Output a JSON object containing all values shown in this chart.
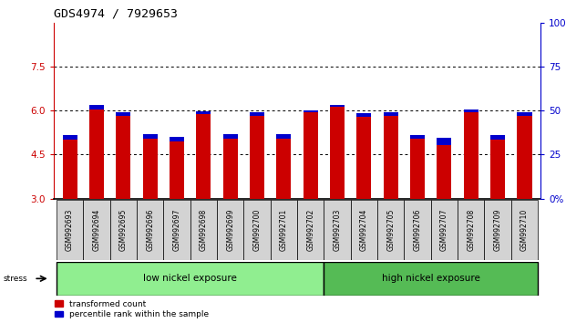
{
  "title": "GDS4974 / 7929653",
  "samples": [
    "GSM992693",
    "GSM992694",
    "GSM992695",
    "GSM992696",
    "GSM992697",
    "GSM992698",
    "GSM992699",
    "GSM992700",
    "GSM992701",
    "GSM992702",
    "GSM992703",
    "GSM992704",
    "GSM992705",
    "GSM992706",
    "GSM992707",
    "GSM992708",
    "GSM992709",
    "GSM992710"
  ],
  "red_values": [
    5.02,
    6.05,
    5.82,
    5.05,
    4.95,
    5.87,
    5.05,
    5.82,
    5.05,
    5.95,
    6.12,
    5.8,
    5.82,
    5.05,
    4.82,
    5.95,
    5.02,
    5.82
  ],
  "blue_values": [
    5.18,
    6.18,
    5.95,
    5.2,
    5.1,
    5.97,
    5.2,
    5.95,
    5.2,
    6.02,
    6.2,
    5.92,
    5.95,
    5.18,
    5.07,
    6.03,
    5.18,
    5.95
  ],
  "y_min": 3,
  "y_max": 9,
  "y_ticks_show": [
    3,
    4.5,
    6,
    7.5
  ],
  "y2_ticks": [
    0,
    25,
    50,
    75,
    100
  ],
  "y2_labels": [
    "0%",
    "25",
    "50",
    "75",
    "100%"
  ],
  "low_nickel_count": 10,
  "bar_width": 0.55,
  "red_color": "#cc0000",
  "blue_color": "#0000cc",
  "low_nickel_color": "#90ee90",
  "high_nickel_color": "#55bb55",
  "tick_bg_color": "#d3d3d3",
  "label_fontsize": 5.5,
  "title_fontsize": 9.5
}
